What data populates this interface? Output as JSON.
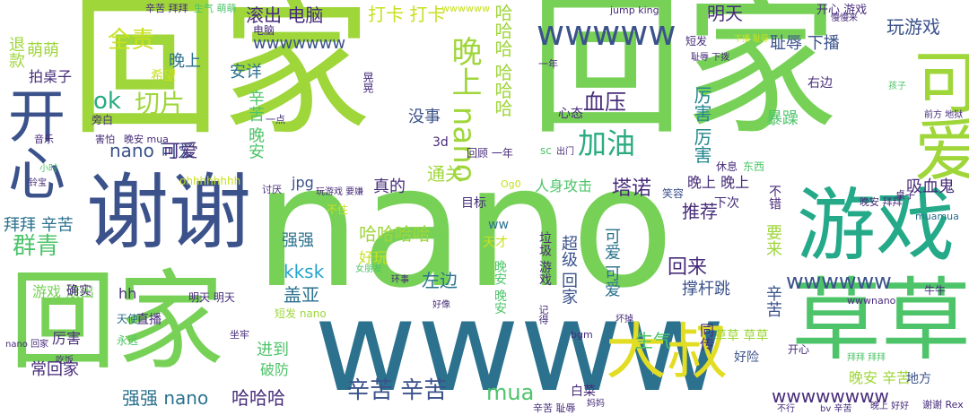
{
  "word_cloud": {
    "background": "#ffffff",
    "palette": [
      "#9fd63a",
      "#77d157",
      "#4ec46a",
      "#2aab81",
      "#24878e",
      "#2c728e",
      "#3b528b",
      "#472c7a",
      "#440154",
      "#e2dd22",
      "#c8e020"
    ],
    "words": [
      {
        "text": "回家",
        "color": "#9fd63a",
        "vertical": false
      },
      {
        "text": "回家",
        "color": "#77d157",
        "vertical": false
      },
      {
        "text": "nano",
        "color": "#77d157",
        "vertical": false
      },
      {
        "text": "wwww",
        "color": "#2c728e",
        "vertical": false
      },
      {
        "text": "谢谢",
        "color": "#3b528b",
        "vertical": false
      },
      {
        "text": "回家",
        "color": "#77d157",
        "vertical": false
      },
      {
        "text": "游戏",
        "color": "#24a989",
        "vertical": false
      },
      {
        "text": "草草",
        "color": "#4ec46a",
        "vertical": false
      },
      {
        "text": "大叔",
        "color": "#e2dd22",
        "vertical": false
      },
      {
        "text": "可爱",
        "color": "#9fd63a",
        "vertical": true
      },
      {
        "text": "开心",
        "color": "#3b528b",
        "vertical": true
      },
      {
        "text": "晚上 nano",
        "color": "#9fd63a",
        "vertical": true
      },
      {
        "text": "wwwww",
        "color": "#3b528b",
        "vertical": false
      },
      {
        "text": "加油",
        "color": "#2aab81",
        "vertical": false
      },
      {
        "text": "全责",
        "color": "#c8e020",
        "vertical": false
      },
      {
        "text": "切片",
        "color": "#9fd63a",
        "vertical": false
      },
      {
        "text": "群青",
        "color": "#4ec46a",
        "vertical": false
      },
      {
        "text": "拜拜 辛苦",
        "color": "#2c728e",
        "vertical": false
      },
      {
        "text": "滚出 电脑",
        "color": "#472c7a",
        "vertical": false
      },
      {
        "text": "打卡 打卡",
        "color": "#c8e020",
        "vertical": false
      },
      {
        "text": "明天",
        "color": "#472c7a",
        "vertical": false
      },
      {
        "text": "开心 游戏",
        "color": "#472c7a",
        "vertical": false
      },
      {
        "text": "玩游戏",
        "color": "#3b528b",
        "vertical": false
      },
      {
        "text": "耻辱 下播",
        "color": "#3b528b",
        "vertical": false
      },
      {
        "text": "wwwwwww",
        "color": "#3b528b",
        "vertical": false
      },
      {
        "text": "晚上",
        "color": "#2c728e",
        "vertical": false
      },
      {
        "text": "萌萌",
        "color": "#9fd63a",
        "vertical": false
      },
      {
        "text": "退款",
        "color": "#9fd63a",
        "vertical": true
      },
      {
        "text": "拍桌子",
        "color": "#472c7a",
        "vertical": false
      },
      {
        "text": "安详",
        "color": "#2c728e",
        "vertical": false
      },
      {
        "text": "ok",
        "color": "#2aab81",
        "vertical": false
      },
      {
        "text": "nano 可爱",
        "color": "#3b528b",
        "vertical": false
      },
      {
        "text": "辛苦 晚安",
        "color": "#4ec46a",
        "vertical": true
      },
      {
        "text": "没事",
        "color": "#3b528b",
        "vertical": false
      },
      {
        "text": "哈哈哈 哈哈哈",
        "color": "#9fd63a",
        "vertical": true
      },
      {
        "text": "血压",
        "color": "#472c7a",
        "vertical": false
      },
      {
        "text": "厉害 厉害",
        "color": "#24878e",
        "vertical": true
      },
      {
        "text": "暴躁",
        "color": "#4ec46a",
        "vertical": false
      },
      {
        "text": "右边",
        "color": "#472c7a",
        "vertical": false
      },
      {
        "text": "通关",
        "color": "#9fd63a",
        "vertical": false
      },
      {
        "text": "塔诺",
        "color": "#472c7a",
        "vertical": false
      },
      {
        "text": "真的",
        "color": "#472c7a",
        "vertical": false
      },
      {
        "text": "jpg",
        "color": "#3b528b",
        "vertical": false
      },
      {
        "text": "晚上 晚上",
        "color": "#472c7a",
        "vertical": false
      },
      {
        "text": "吸血鬼",
        "color": "#472c7a",
        "vertical": false
      },
      {
        "text": "人身攻击",
        "color": "#4ec46a",
        "vertical": false
      },
      {
        "text": "目标",
        "color": "#472c7a",
        "vertical": false
      },
      {
        "text": "推荐",
        "color": "#472c7a",
        "vertical": false
      },
      {
        "text": "强强",
        "color": "#2c728e",
        "vertical": false
      },
      {
        "text": "哈哈哈哈",
        "color": "#9fd63a",
        "vertical": false
      },
      {
        "text": "kksk",
        "color": "#24a3cb",
        "vertical": false
      },
      {
        "text": "盖亚",
        "color": "#2c728e",
        "vertical": false
      },
      {
        "text": "好玩",
        "color": "#c8e020",
        "vertical": false
      },
      {
        "text": "左边",
        "color": "#2c728e",
        "vertical": false
      },
      {
        "text": "回来",
        "color": "#472c7a",
        "vertical": false
      },
      {
        "text": "撑杆跳",
        "color": "#3b528b",
        "vertical": false
      },
      {
        "text": "要来",
        "color": "#9fd63a",
        "vertical": true
      },
      {
        "text": "wwwwww",
        "color": "#3b528b",
        "vertical": false
      },
      {
        "text": "游戏 滚出",
        "color": "#77d157",
        "vertical": false
      },
      {
        "text": "hh",
        "color": "#472c7a",
        "vertical": false
      },
      {
        "text": "直播",
        "color": "#472c7a",
        "vertical": false
      },
      {
        "text": "确实",
        "color": "#472c7a",
        "vertical": false
      },
      {
        "text": "天使",
        "color": "#2c728e",
        "vertical": false
      },
      {
        "text": "厉害",
        "color": "#472c7a",
        "vertical": false
      },
      {
        "text": "进到",
        "color": "#4ec46a",
        "vertical": false
      },
      {
        "text": "破防",
        "color": "#4ec46a",
        "vertical": false
      },
      {
        "text": "生气",
        "color": "#4ec46a",
        "vertical": false
      },
      {
        "text": "常回家",
        "color": "#472c7a",
        "vertical": false
      },
      {
        "text": "强强 nano",
        "color": "#2c728e",
        "vertical": false
      },
      {
        "text": "哈哈哈",
        "color": "#472c7a",
        "vertical": false
      },
      {
        "text": "辛苦 辛苦",
        "color": "#3b528b",
        "vertical": false
      },
      {
        "text": "mua",
        "color": "#4ec46a",
        "vertical": false
      },
      {
        "text": "白菜",
        "color": "#472c7a",
        "vertical": false
      },
      {
        "text": "wwwwwwww",
        "color": "#472c7a",
        "vertical": false
      },
      {
        "text": "草草 草草",
        "color": "#9fd63a",
        "vertical": false
      },
      {
        "text": "晚安 辛苦",
        "color": "#9fd63a",
        "vertical": false
      },
      {
        "text": "地方",
        "color": "#3b528b",
        "vertical": false
      },
      {
        "text": "超级 回家",
        "color": "#3b528b",
        "vertical": true
      },
      {
        "text": "可爱 可爱",
        "color": "#2c728e",
        "vertical": true
      },
      {
        "text": "辛苦",
        "color": "#3b528b",
        "vertical": true
      },
      {
        "text": "同传",
        "color": "#472c7a",
        "vertical": true
      },
      {
        "text": "好险",
        "color": "#3b528b",
        "vertical": false
      },
      {
        "text": "垃圾 游戏",
        "color": "#472c7a",
        "vertical": true
      },
      {
        "text": "晚安 晚安",
        "color": "#4ec46a",
        "vertical": true
      },
      {
        "text": "天才",
        "color": "#c8e020",
        "vertical": false
      },
      {
        "text": "短发 nano",
        "color": "#9fd63a",
        "vertical": false
      },
      {
        "text": "笑容",
        "color": "#3b528b",
        "vertical": false
      },
      {
        "text": "下次",
        "color": "#472c7a",
        "vertical": false
      },
      {
        "text": "不错",
        "color": "#472c7a",
        "vertical": true
      },
      {
        "text": "ww",
        "color": "#2c728e",
        "vertical": false
      },
      {
        "text": "muamua",
        "color": "#2c728e",
        "vertical": false
      },
      {
        "text": "晚安 拜拜",
        "color": "#472c7a",
        "vertical": false
      },
      {
        "text": "桌子",
        "color": "#472c7a",
        "vertical": false
      },
      {
        "text": "心态",
        "color": "#472c7a",
        "vertical": false
      },
      {
        "text": "休息",
        "color": "#472c7a",
        "vertical": false
      },
      {
        "text": "东西",
        "color": "#4ec46a",
        "vertical": false
      },
      {
        "text": "3d",
        "color": "#472c7a",
        "vertical": false
      },
      {
        "text": "回顾 一年",
        "color": "#472c7a",
        "vertical": false
      },
      {
        "text": "ohhhhhhhh",
        "color": "#c8e020",
        "vertical": false
      },
      {
        "text": "希望",
        "color": "#c8e020",
        "vertical": false
      },
      {
        "text": "旁白",
        "color": "#472c7a",
        "vertical": false
      },
      {
        "text": "害怕",
        "color": "#472c7a",
        "vertical": false
      },
      {
        "text": "晚安 mua",
        "color": "#472c7a",
        "vertical": false
      },
      {
        "text": "一点",
        "color": "#472c7a",
        "vertical": false
      },
      {
        "text": "晃晃",
        "color": "#472c7a",
        "vertical": true
      },
      {
        "text": "辛苦 拜拜",
        "color": "#472c7a",
        "vertical": false
      },
      {
        "text": "生气 萌萌",
        "color": "#4ec46a",
        "vertical": false
      },
      {
        "text": "jump king",
        "color": "#472c7a",
        "vertical": false
      },
      {
        "text": "wwwwww",
        "color": "#c8e020",
        "vertical": false
      },
      {
        "text": "电脑",
        "color": "#472c7a",
        "vertical": false
      },
      {
        "text": "一年",
        "color": "#472c7a",
        "vertical": false
      },
      {
        "text": "短发",
        "color": "#472c7a",
        "vertical": false
      },
      {
        "text": "下播 耻辱",
        "color": "#c8e020",
        "vertical": false
      },
      {
        "text": "耻辱 下拨",
        "color": "#472c7a",
        "vertical": false
      },
      {
        "text": "慢慢来",
        "color": "#472c7a",
        "vertical": false
      },
      {
        "text": "孩子",
        "color": "#4ec46a",
        "vertical": false
      },
      {
        "text": "前方 地狱",
        "color": "#472c7a",
        "vertical": false
      },
      {
        "text": "音乐",
        "color": "#472c7a",
        "vertical": false
      },
      {
        "text": "小时",
        "color": "#4ec46a",
        "vertical": false
      },
      {
        "text": "铃宝",
        "color": "#472c7a",
        "vertical": false
      },
      {
        "text": "讨厌",
        "color": "#472c7a",
        "vertical": false
      },
      {
        "text": "不住",
        "color": "#c8e020",
        "vertical": false
      },
      {
        "text": "Og0",
        "color": "#c8e020",
        "vertical": false
      },
      {
        "text": "玩游戏 要嫌",
        "color": "#472c7a",
        "vertical": false
      },
      {
        "text": "出门",
        "color": "#472c7a",
        "vertical": false
      },
      {
        "text": "sc",
        "color": "#4ec46a",
        "vertical": false
      },
      {
        "text": "nano 回家",
        "color": "#472c7a",
        "vertical": false
      },
      {
        "text": "吃饭",
        "color": "#472c7a",
        "vertical": false
      },
      {
        "text": "永远",
        "color": "#4ec46a",
        "vertical": false
      },
      {
        "text": "坐牢",
        "color": "#472c7a",
        "vertical": false
      },
      {
        "text": "bgm",
        "color": "#472c7a",
        "vertical": false
      },
      {
        "text": "记得",
        "color": "#472c7a",
        "vertical": true
      },
      {
        "text": "坏掉",
        "color": "#472c7a",
        "vertical": false
      },
      {
        "text": "好像",
        "color": "#472c7a",
        "vertical": false
      },
      {
        "text": "环事",
        "color": "#472c7a",
        "vertical": false
      },
      {
        "text": "女朋友",
        "color": "#4ec46a",
        "vertical": false
      },
      {
        "text": "牛牛",
        "color": "#472c7a",
        "vertical": false
      },
      {
        "text": "wwwnano",
        "color": "#472c7a",
        "vertical": false
      },
      {
        "text": "拜拜 拜拜",
        "color": "#4ec46a",
        "vertical": false
      },
      {
        "text": "开心",
        "color": "#472c7a",
        "vertical": false
      },
      {
        "text": "谢谢 Rex",
        "color": "#472c7a",
        "vertical": false
      },
      {
        "text": "晚上 好好",
        "color": "#472c7a",
        "vertical": false
      },
      {
        "text": "辛苦 耻辱",
        "color": "#472c7a",
        "vertical": false
      },
      {
        "text": "妈妈",
        "color": "#472c7a",
        "vertical": false
      },
      {
        "text": "不行",
        "color": "#472c7a",
        "vertical": false
      },
      {
        "text": "bv 辛苦",
        "color": "#472c7a",
        "vertical": false
      },
      {
        "text": "明天 明天",
        "color": "#472c7a",
        "vertical": false
      },
      {
        "text": "可爱",
        "color": "#472c7a",
        "vertical": false
      }
    ]
  }
}
